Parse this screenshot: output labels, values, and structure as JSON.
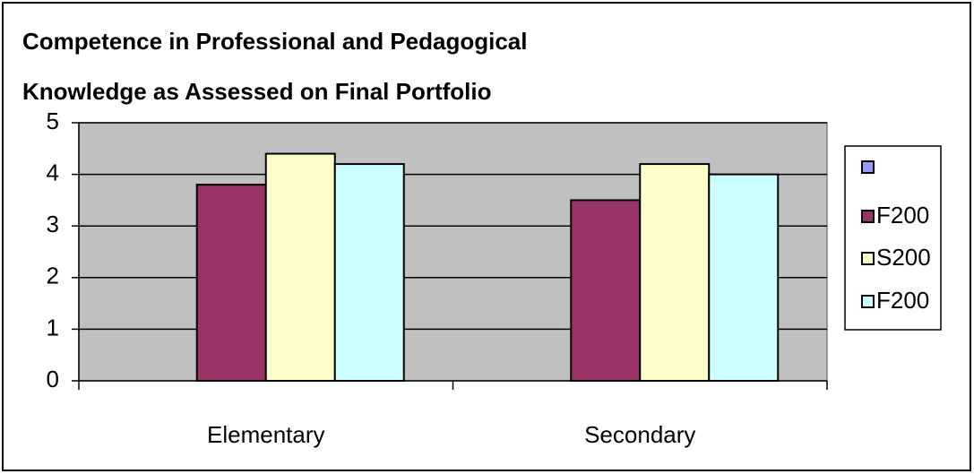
{
  "chart_data": {
    "type": "bar",
    "title": [
      "Competence in Professional and Pedagogical",
      "Knowledge as Assessed on Final Portfolio"
    ],
    "categories": [
      "Elementary",
      "Secondary"
    ],
    "series": [
      {
        "color": "#9999ff",
        "values": [
          null,
          null
        ]
      },
      {
        "name": "F200",
        "color": "#993366",
        "values": [
          3.8,
          3.5
        ]
      },
      {
        "name": "S200",
        "color": "#ffffcc",
        "values": [
          4.4,
          4.2
        ]
      },
      {
        "name": "F200",
        "color": "#ccffff",
        "values": [
          4.2,
          4.0
        ]
      }
    ],
    "ylim": [
      0,
      5
    ],
    "yticks": [
      0,
      1,
      2,
      3,
      4,
      5
    ],
    "grid": true,
    "legend": "right"
  }
}
